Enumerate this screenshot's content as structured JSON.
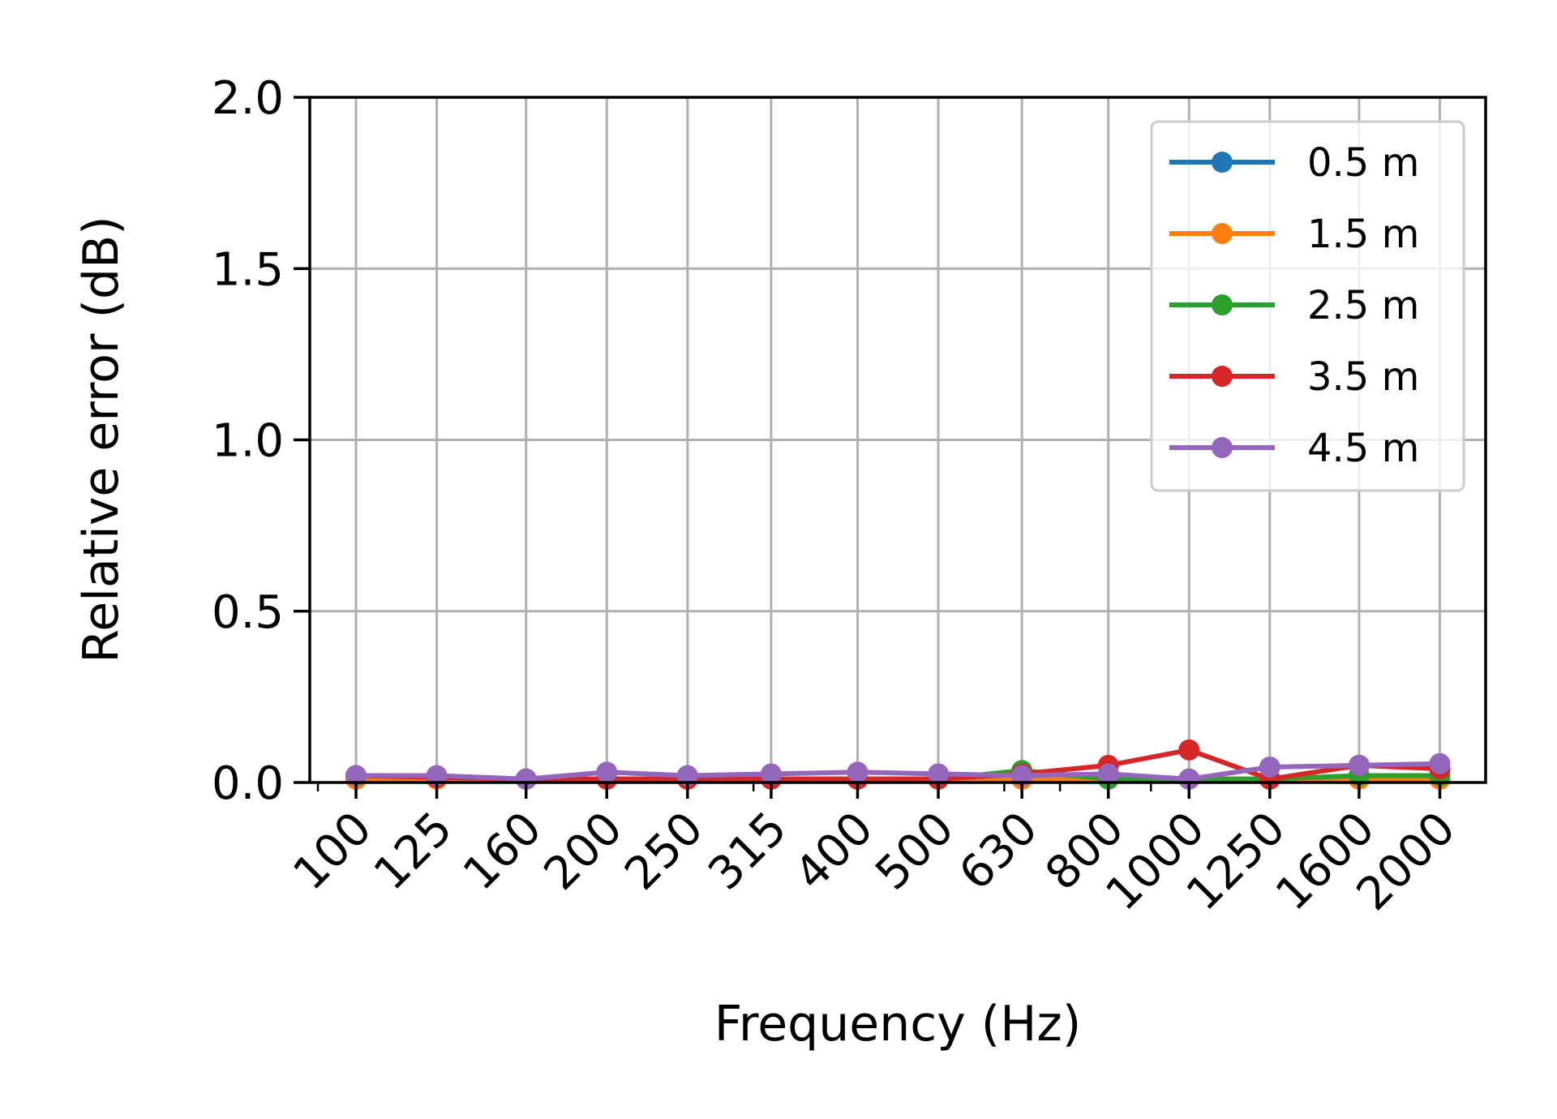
{
  "chart_data": {
    "type": "line",
    "title": "",
    "xlabel": "Frequency (Hz)",
    "ylabel": "Relative error (dB)",
    "x_scale": "log",
    "ylim": [
      0,
      2.0
    ],
    "yticks": [
      "0.0",
      "0.5",
      "1.0",
      "1.5",
      "2.0"
    ],
    "grid": true,
    "legend_position": "top-right",
    "x": [
      100,
      125,
      160,
      200,
      250,
      315,
      400,
      500,
      630,
      800,
      1000,
      1250,
      1600,
      2000
    ],
    "xtick_labels": [
      "100",
      "125",
      "160",
      "200",
      "250",
      "315",
      "400",
      "500",
      "630",
      "800",
      "1000",
      "1250",
      "1600",
      "2000"
    ],
    "series": [
      {
        "name": "0.5 m",
        "color": "#1f77b4",
        "values": [
          0.01,
          0.01,
          0.01,
          0.01,
          0.01,
          0.01,
          0.01,
          0.01,
          0.01,
          0.01,
          0.01,
          0.01,
          0.01,
          0.01
        ]
      },
      {
        "name": "1.5 m",
        "color": "#ff7f0e",
        "values": [
          0.01,
          0.01,
          0.01,
          0.01,
          0.01,
          0.01,
          0.01,
          0.01,
          0.01,
          0.01,
          0.01,
          0.01,
          0.01,
          0.01
        ]
      },
      {
        "name": "2.5 m",
        "color": "#2ca02c",
        "values": [
          0.02,
          0.015,
          0.01,
          0.01,
          0.01,
          0.01,
          0.01,
          0.01,
          0.035,
          0.01,
          0.01,
          0.01,
          0.02,
          0.02
        ]
      },
      {
        "name": "3.5 m",
        "color": "#d62728",
        "values": [
          0.02,
          0.015,
          0.01,
          0.01,
          0.01,
          0.01,
          0.01,
          0.01,
          0.025,
          0.05,
          0.095,
          0.01,
          0.05,
          0.04
        ]
      },
      {
        "name": "4.5 m",
        "color": "#9467bd",
        "values": [
          0.02,
          0.02,
          0.01,
          0.03,
          0.02,
          0.025,
          0.03,
          0.025,
          0.02,
          0.025,
          0.01,
          0.045,
          0.05,
          0.055
        ]
      }
    ]
  }
}
